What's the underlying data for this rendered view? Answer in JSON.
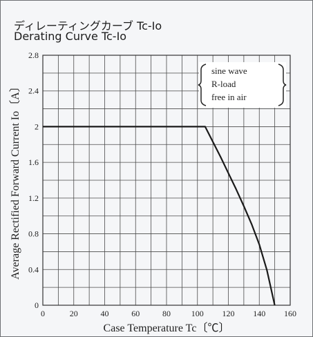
{
  "title_jp": "ディレーティングカーブ Tc-Io",
  "title_en": "Derating Curve Tc-Io",
  "chart_data": {
    "type": "line",
    "title": "Derating Curve Tc-Io",
    "xlabel": "Case Temperature Tc〔℃〕",
    "ylabel": "Average Rectified Forward Current Io〔A〕",
    "xlim": [
      0,
      160
    ],
    "ylim": [
      0,
      2.8
    ],
    "xticks": [
      "0",
      "20",
      "40",
      "60",
      "80",
      "100",
      "120",
      "140",
      "160"
    ],
    "yticks": [
      "0",
      "0.4",
      "0.8",
      "1.2",
      "1.6",
      "2",
      "2.4",
      "2.8"
    ],
    "grid": true,
    "series": [
      {
        "x": [
          0,
          105,
          110,
          115,
          120,
          125,
          130,
          135,
          140,
          145,
          150
        ],
        "y": [
          2.0,
          2.0,
          1.83,
          1.66,
          1.48,
          1.3,
          1.11,
          0.91,
          0.68,
          0.39,
          0.0
        ]
      }
    ],
    "annotation_lines": [
      "sine wave",
      "R-load",
      "free in air"
    ],
    "line_color": "#1a1a1a",
    "grid_color": "#4a4a4a"
  }
}
